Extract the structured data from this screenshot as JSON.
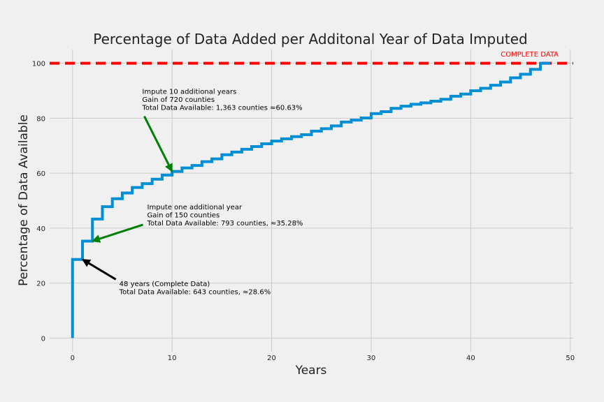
{
  "chart_data": {
    "type": "line",
    "step": "post",
    "title": "Percentage of Data Added per Additonal Year of Data Imputed",
    "xlabel": "Years",
    "ylabel": "Percentage of Data Available",
    "xlim": [
      -2.3,
      50.3
    ],
    "ylim": [
      -5,
      105
    ],
    "xticks": [
      0,
      10,
      20,
      30,
      40,
      50
    ],
    "yticks": [
      0,
      20,
      40,
      60,
      80,
      100
    ],
    "grid": true,
    "colors": {
      "line": "#008fd5",
      "reference": "#ff0000",
      "arrow_green": "#008000",
      "arrow_black": "#000000",
      "background": "#f0f0f0",
      "grid": "#cbcbcb"
    },
    "series": [
      {
        "x": [
          0,
          0,
          1,
          2,
          3,
          4,
          5,
          6,
          7,
          8,
          9,
          10,
          11,
          12,
          13,
          14,
          15,
          16,
          17,
          18,
          19,
          20,
          21,
          22,
          23,
          24,
          25,
          26,
          27,
          28,
          29,
          30,
          31,
          32,
          33,
          34,
          35,
          36,
          37,
          38,
          39,
          40,
          41,
          42,
          43,
          44,
          45,
          46,
          47,
          48
        ],
        "y": [
          0,
          28.6,
          35.28,
          43.3,
          47.8,
          50.7,
          52.8,
          54.8,
          56.2,
          57.8,
          59.3,
          60.63,
          61.9,
          62.8,
          64.2,
          65.2,
          66.7,
          67.7,
          68.7,
          69.7,
          70.7,
          71.7,
          72.5,
          73.3,
          74.0,
          75.3,
          76.2,
          77.2,
          78.6,
          79.3,
          80.1,
          81.7,
          82.4,
          83.6,
          84.4,
          85.1,
          85.6,
          86.2,
          86.9,
          88.0,
          88.8,
          90.0,
          90.9,
          92.0,
          93.2,
          94.7,
          96.0,
          97.8,
          100,
          100
        ]
      }
    ],
    "reference_line": {
      "y": 100,
      "label": "COMPLETE DATA"
    },
    "annotations": [
      {
        "lines": [
          "Impute 10 additional years",
          "Gain of 720 counties",
          "Total Data Available: 1,363 counties ≈60.63%"
        ],
        "text_at": [
          7,
          83
        ],
        "arrow_to": [
          10,
          60.63
        ],
        "arrow_color": "green"
      },
      {
        "lines": [
          "Impute one additional year",
          "Gain of 150 counties",
          "Total Data Available: 793 counties, ≈35.28%"
        ],
        "text_at": [
          7.5,
          41
        ],
        "arrow_to": [
          2,
          35.28
        ],
        "arrow_color": "green"
      },
      {
        "lines": [
          "48 years (Complete Data)",
          "Total Data Available: 643 counties, ≈28.6%"
        ],
        "text_at": [
          4.7,
          16
        ],
        "arrow_to": [
          1,
          28.6
        ],
        "arrow_color": "black"
      }
    ]
  }
}
